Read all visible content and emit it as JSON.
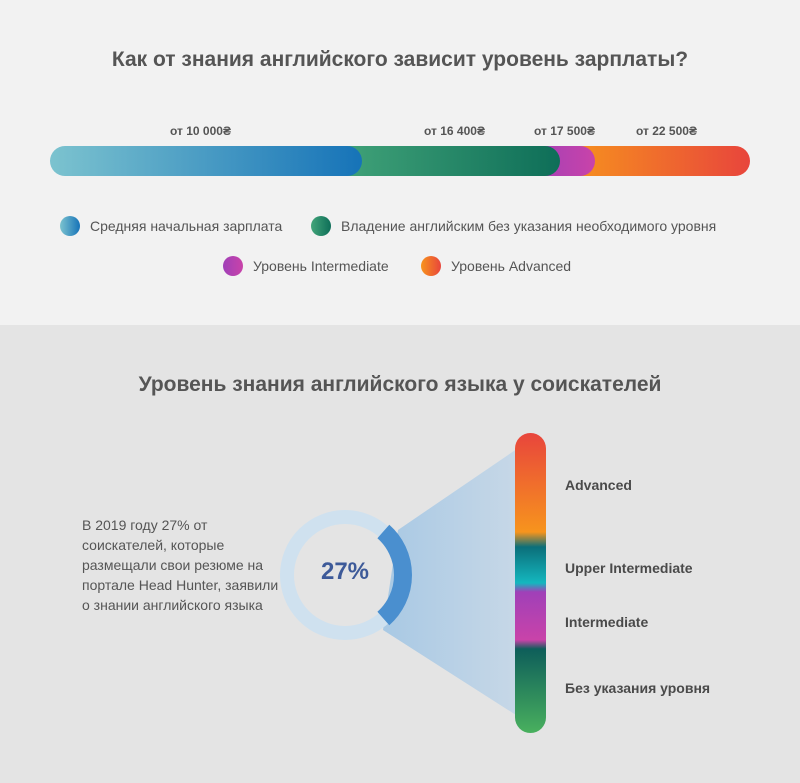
{
  "salary_section": {
    "title": "Как от знания английского зависит уровень зарплаты?",
    "markers": [
      "от 10 000₴",
      "от 16 400₴",
      "от 17 500₴",
      "от 22 500₴"
    ],
    "legend": [
      {
        "label": "Средняя начальная зарплата",
        "color": "#1673b8"
      },
      {
        "label": "Владение английским без указания необходимого уровня",
        "color": "#0e6e58"
      },
      {
        "label": "Уровень Intermediate",
        "color": "#c943a9"
      },
      {
        "label": "Уровень Advanced",
        "color": "#e8453c"
      }
    ]
  },
  "level_section": {
    "title": "Уровень знания английского языка у соискателей",
    "description": "В 2019 году 27% от соискателей, которые размещали свои резюме на портале Head Hunter, заявили о знании английского языка",
    "percent_label": "27%",
    "levels": [
      "Advanced",
      "Upper Intermediate",
      "Intermediate",
      "Без указания уровня"
    ]
  },
  "chart_data": [
    {
      "type": "bar",
      "title": "Как от знания английского зависит уровень зарплаты?",
      "categories": [
        "Средняя начальная зарплата",
        "Владение английским без указания необходимого уровня",
        "Уровень Intermediate",
        "Уровень Advanced"
      ],
      "values": [
        10000,
        16400,
        17500,
        22500
      ],
      "value_labels": [
        "от 10 000₴",
        "от 16 400₴",
        "от 17 500₴",
        "от 22 500₴"
      ],
      "unit": "₴"
    },
    {
      "type": "pie",
      "title": "Уровень знания английского языка у соискателей",
      "slices": [
        {
          "label": "27%",
          "value": 27
        },
        {
          "label": "",
          "value": 73
        }
      ]
    }
  ]
}
